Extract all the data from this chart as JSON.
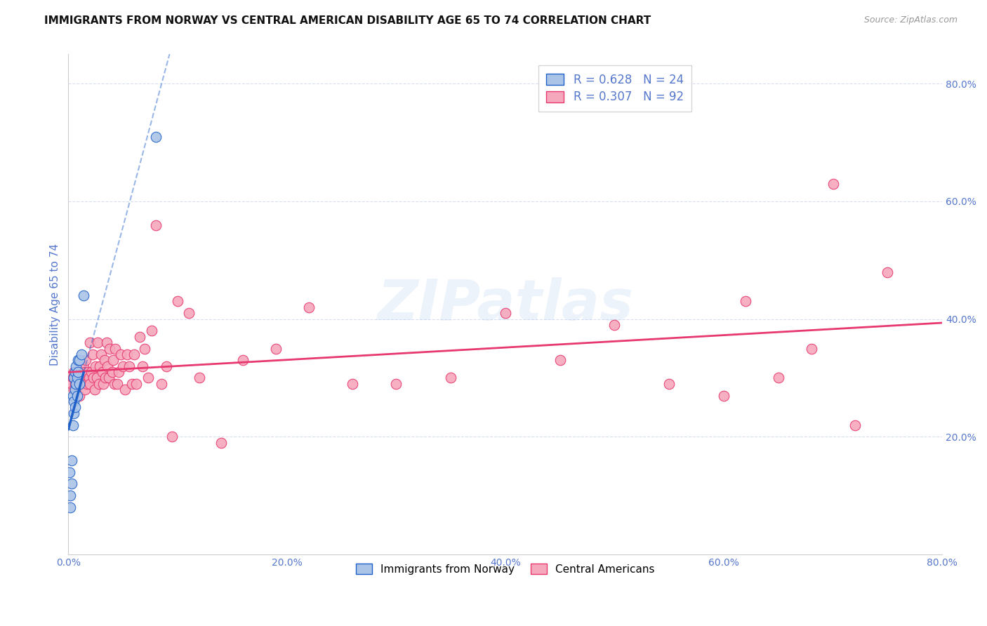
{
  "title": "IMMIGRANTS FROM NORWAY VS CENTRAL AMERICAN DISABILITY AGE 65 TO 74 CORRELATION CHART",
  "source": "Source: ZipAtlas.com",
  "ylabel": "Disability Age 65 to 74",
  "norway_R": 0.628,
  "norway_N": 24,
  "central_R": 0.307,
  "central_N": 92,
  "norway_color": "#aac4e8",
  "central_color": "#f5a8bc",
  "norway_line_color": "#2060c8",
  "central_line_color": "#e83870",
  "axis_label_color": "#5577cc",
  "background_color": "#ffffff",
  "grid_color": "#d8ddf0",
  "watermark_text": "ZIPatlas",
  "xlim": [
    0.0,
    0.8
  ],
  "ylim": [
    0.0,
    0.85
  ],
  "xtick_vals": [
    0.0,
    0.2,
    0.4,
    0.6,
    0.8
  ],
  "xtick_labels": [
    "0.0%",
    "20.0%",
    "40.0%",
    "60.0%",
    "80.0%"
  ],
  "ytick_vals": [
    0.2,
    0.4,
    0.6,
    0.8
  ],
  "ytick_labels": [
    "20.0%",
    "40.0%",
    "60.0%",
    "80.0%"
  ],
  "norway_x": [
    0.001,
    0.002,
    0.002,
    0.003,
    0.003,
    0.004,
    0.004,
    0.005,
    0.005,
    0.005,
    0.006,
    0.006,
    0.006,
    0.007,
    0.007,
    0.008,
    0.008,
    0.009,
    0.009,
    0.01,
    0.01,
    0.012,
    0.014,
    0.08
  ],
  "norway_y": [
    0.14,
    0.1,
    0.08,
    0.16,
    0.12,
    0.27,
    0.22,
    0.3,
    0.26,
    0.24,
    0.31,
    0.28,
    0.25,
    0.32,
    0.29,
    0.3,
    0.27,
    0.33,
    0.31,
    0.29,
    0.33,
    0.34,
    0.44,
    0.71
  ],
  "central_x": [
    0.003,
    0.004,
    0.005,
    0.005,
    0.006,
    0.006,
    0.007,
    0.007,
    0.008,
    0.008,
    0.009,
    0.009,
    0.01,
    0.01,
    0.01,
    0.011,
    0.011,
    0.012,
    0.012,
    0.013,
    0.013,
    0.014,
    0.015,
    0.015,
    0.016,
    0.017,
    0.018,
    0.019,
    0.02,
    0.02,
    0.021,
    0.022,
    0.023,
    0.024,
    0.025,
    0.026,
    0.027,
    0.028,
    0.029,
    0.03,
    0.031,
    0.032,
    0.033,
    0.034,
    0.035,
    0.036,
    0.037,
    0.038,
    0.04,
    0.041,
    0.042,
    0.043,
    0.045,
    0.046,
    0.048,
    0.05,
    0.052,
    0.054,
    0.056,
    0.058,
    0.06,
    0.062,
    0.065,
    0.068,
    0.07,
    0.073,
    0.076,
    0.08,
    0.085,
    0.09,
    0.095,
    0.1,
    0.11,
    0.12,
    0.14,
    0.16,
    0.19,
    0.22,
    0.26,
    0.3,
    0.35,
    0.4,
    0.45,
    0.5,
    0.55,
    0.6,
    0.62,
    0.65,
    0.68,
    0.7,
    0.72,
    0.75
  ],
  "central_y": [
    0.29,
    0.3,
    0.28,
    0.31,
    0.29,
    0.3,
    0.28,
    0.3,
    0.29,
    0.31,
    0.3,
    0.31,
    0.27,
    0.3,
    0.29,
    0.31,
    0.3,
    0.29,
    0.31,
    0.3,
    0.29,
    0.32,
    0.28,
    0.31,
    0.33,
    0.29,
    0.31,
    0.3,
    0.36,
    0.29,
    0.31,
    0.34,
    0.3,
    0.28,
    0.32,
    0.3,
    0.36,
    0.29,
    0.32,
    0.34,
    0.31,
    0.29,
    0.33,
    0.3,
    0.36,
    0.32,
    0.3,
    0.35,
    0.31,
    0.33,
    0.29,
    0.35,
    0.29,
    0.31,
    0.34,
    0.32,
    0.28,
    0.34,
    0.32,
    0.29,
    0.34,
    0.29,
    0.37,
    0.32,
    0.35,
    0.3,
    0.38,
    0.56,
    0.29,
    0.32,
    0.2,
    0.43,
    0.41,
    0.3,
    0.19,
    0.33,
    0.35,
    0.42,
    0.29,
    0.29,
    0.3,
    0.41,
    0.33,
    0.39,
    0.29,
    0.27,
    0.43,
    0.3,
    0.35,
    0.63,
    0.22,
    0.48
  ],
  "title_fontsize": 11,
  "source_fontsize": 9,
  "axis_fontsize": 11,
  "tick_fontsize": 10,
  "legend_fontsize": 12
}
